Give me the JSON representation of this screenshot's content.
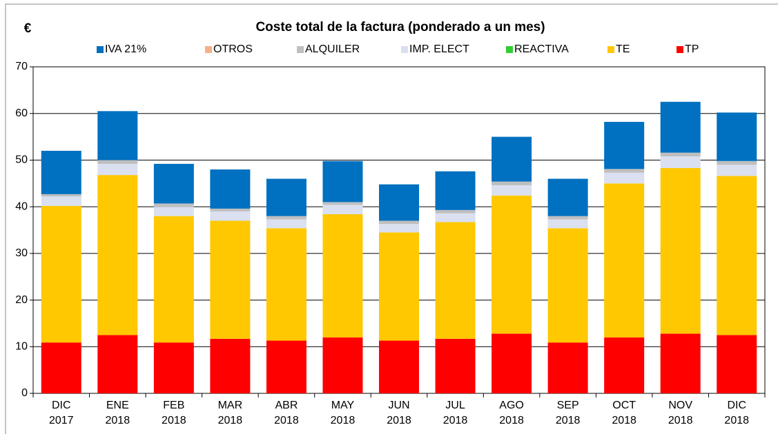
{
  "chart_data": {
    "type": "stacked_bar",
    "title": "Coste total de la factura (ponderado a un mes)",
    "ylabel": "€",
    "categories": [
      [
        "DIC",
        "2017"
      ],
      [
        "ENE",
        "2018"
      ],
      [
        "FEB",
        "2018"
      ],
      [
        "MAR",
        "2018"
      ],
      [
        "ABR",
        "2018"
      ],
      [
        "MAY",
        "2018"
      ],
      [
        "JUN",
        "2018"
      ],
      [
        "JUL",
        "2018"
      ],
      [
        "AGO",
        "2018"
      ],
      [
        "SEP",
        "2018"
      ],
      [
        "OCT",
        "2018"
      ],
      [
        "NOV",
        "2018"
      ],
      [
        "DIC",
        "2018"
      ]
    ],
    "series": [
      {
        "name": "IVA 21%",
        "color": "#0070c0",
        "values": [
          9.3,
          10.5,
          8.5,
          8.4,
          8.0,
          8.8,
          7.8,
          8.3,
          9.6,
          8.0,
          10.1,
          10.9,
          10.4
        ]
      },
      {
        "name": "OTROS",
        "color": "#f4b183",
        "values": [
          0,
          0,
          0,
          0,
          0,
          0,
          0,
          0,
          0,
          0,
          0,
          0,
          0
        ]
      },
      {
        "name": "ALQUILER",
        "color": "#bfbfbf",
        "values": [
          0.5,
          0.8,
          0.7,
          0.6,
          0.7,
          0.6,
          0.7,
          0.7,
          0.8,
          0.7,
          0.8,
          0.8,
          0.8
        ]
      },
      {
        "name": "IMP. ELECT",
        "color": "#dae0f0",
        "values": [
          2.0,
          2.4,
          2.0,
          2.0,
          1.9,
          2.0,
          1.8,
          1.9,
          2.2,
          1.9,
          2.3,
          2.5,
          2.4
        ]
      },
      {
        "name": "REACTIVA",
        "color": "#33cc33",
        "values": [
          0,
          0,
          0,
          0,
          0,
          0,
          0,
          0,
          0,
          0,
          0,
          0,
          0
        ]
      },
      {
        "name": "TE",
        "color": "#ffc800",
        "values": [
          29.3,
          34.3,
          27.1,
          25.3,
          24.1,
          26.4,
          23.2,
          25.0,
          29.6,
          24.5,
          33.0,
          35.5,
          34.1
        ]
      },
      {
        "name": "TP",
        "color": "#ff0000",
        "values": [
          10.9,
          12.5,
          10.9,
          11.7,
          11.3,
          12.0,
          11.3,
          11.7,
          12.8,
          10.9,
          12.0,
          12.8,
          12.5
        ]
      }
    ],
    "ylim": [
      0,
      70
    ],
    "yticks": [
      0,
      10,
      20,
      30,
      40,
      50,
      60,
      70
    ],
    "grid": true,
    "legend": "top"
  }
}
